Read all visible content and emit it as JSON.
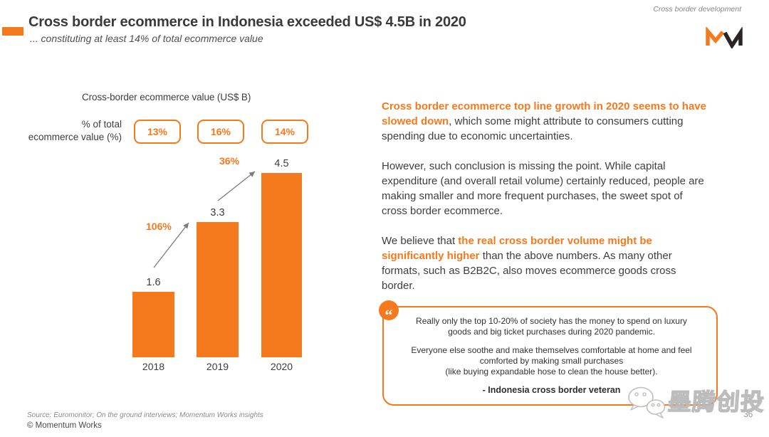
{
  "colors": {
    "accent": "#F5791D",
    "title_text": "#3A3A3A",
    "body_text": "#3E3E3E",
    "muted_gray": "#8B8B8B",
    "arrow_gray": "#7B7B7B"
  },
  "page": {
    "number": "36"
  },
  "header": {
    "title": "Cross border ecommerce in Indonesia exceeded US$ 4.5B in 2020",
    "subtitle": "... constituting at least 14% of total ecommerce value",
    "tagline": "Cross border development",
    "logo_text": "MW"
  },
  "chart_data": {
    "type": "bar",
    "title": "Cross-border ecommerce value (US$ B)",
    "categories": [
      "2018",
      "2019",
      "2020"
    ],
    "values": [
      1.6,
      3.3,
      4.5
    ],
    "value_labels": [
      "1.6",
      "3.3",
      "4.5"
    ],
    "pct_label_line1": "% of total",
    "pct_label_line2": "ecommerce value (%)",
    "pct_of_total": [
      "13%",
      "16%",
      "14%"
    ],
    "growth_labels": [
      "106%",
      "36%"
    ],
    "bar_color": "#F5791D",
    "ylim": [
      0,
      5
    ],
    "grid": false,
    "legend": false
  },
  "body": {
    "p1_highlight": "Cross border ecommerce top line growth in 2020 seems to have slowed down",
    "p1_rest": ", which some might attribute to consumers cutting spending due to economic uncertainties.",
    "p2": "However, such conclusion is missing the point. While capital expenditure (and overall retail volume) certainly reduced, people are making smaller and more frequent purchases, the sweet spot of cross border ecommerce.",
    "p3_pre": "We believe that ",
    "p3_highlight": "the real cross border volume might be significantly higher",
    "p3_rest": " than the above numbers. As many other formats, such as B2B2C, also moves ecommerce goods cross border."
  },
  "quote": {
    "mark": "“",
    "p1": "Really only the top 10-20% of society has the money to spend on luxury goods and big ticket purchases during 2020 pandemic.",
    "p2": "Everyone else soothe and make themselves comfortable at home and feel comforted by making small purchases",
    "p3": "(like buying expandable hose to clean the house better).",
    "attribution": "- Indonesia cross border veteran"
  },
  "footer": {
    "source": "Source:  Euromonitor;  On the ground interviews;  Momentum Works insights",
    "copyright": "© Momentum Works"
  },
  "watermark": {
    "text": "墨腾创投"
  }
}
